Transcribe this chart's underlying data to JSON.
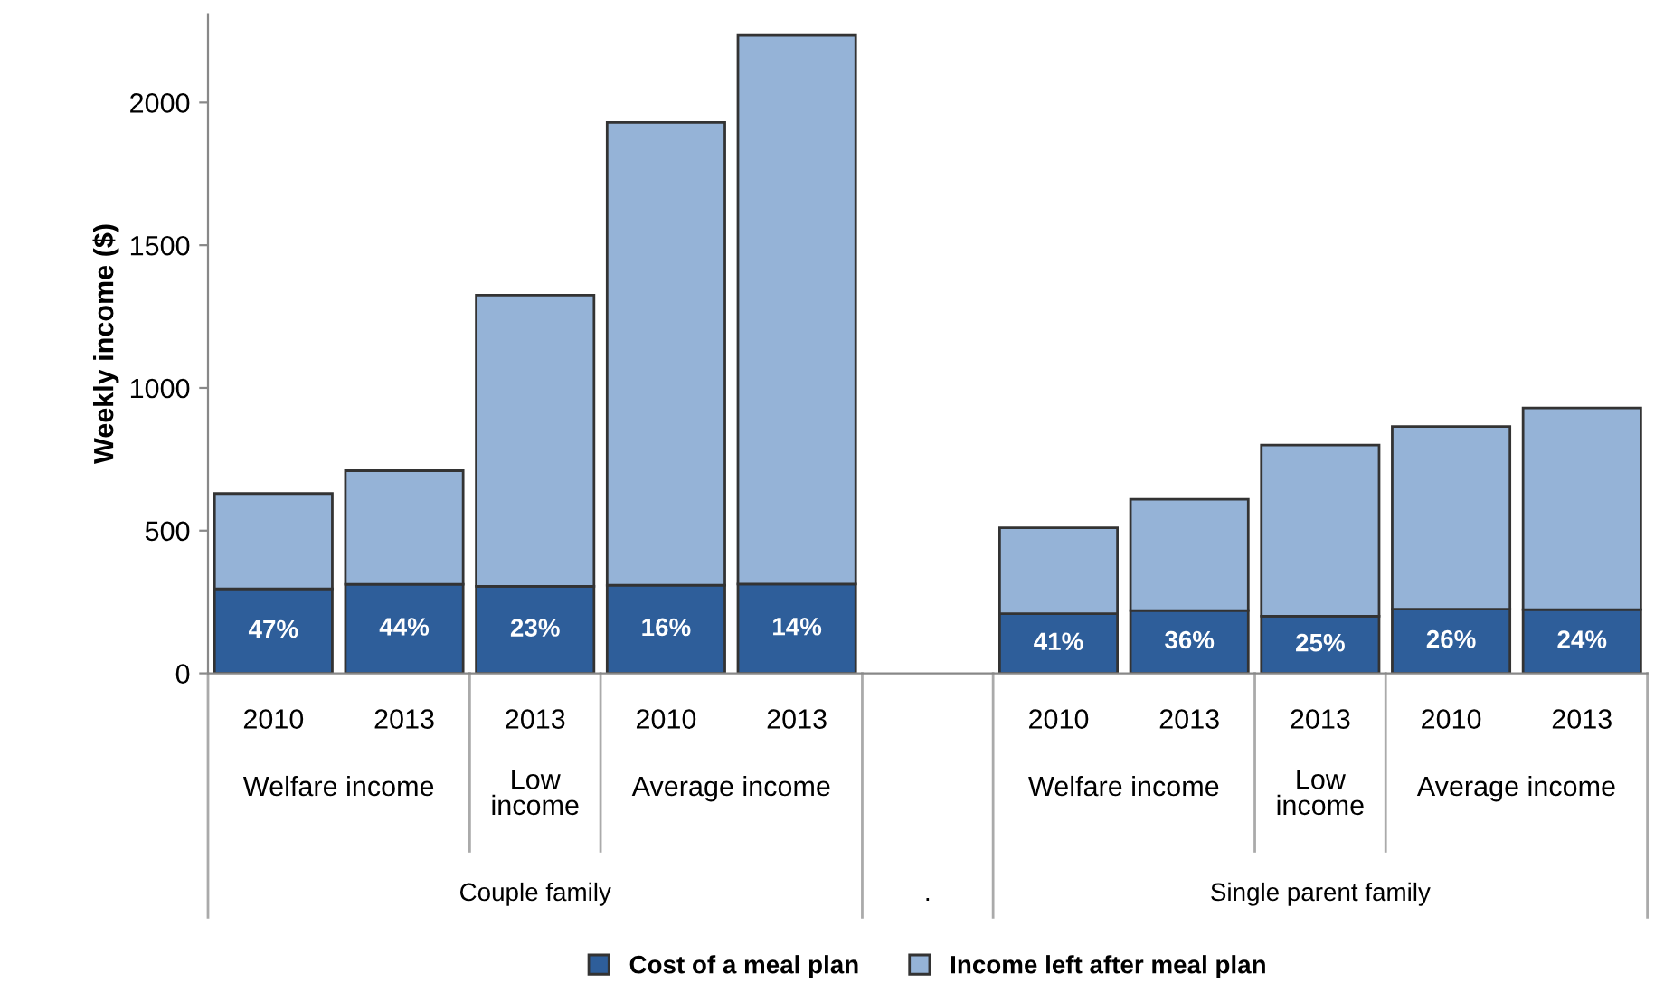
{
  "chart_data": {
    "type": "bar",
    "stacked": true,
    "ylabel": "Weekly income ($)",
    "categories": [
      "2010",
      "2013",
      "2013",
      "2010",
      "2013",
      null,
      "2010",
      "2013",
      "2013",
      "2010",
      "2013"
    ],
    "series": [
      {
        "name": "Cost of a meal plan",
        "color": "#2e5e9a",
        "values": [
          296,
          312,
          305,
          309,
          313,
          null,
          209,
          220,
          200,
          225,
          223
        ]
      },
      {
        "name": "Income left after meal plan",
        "color": "#95b3d7",
        "values": [
          334,
          398,
          1020,
          1621,
          1922,
          null,
          301,
          390,
          600,
          640,
          707
        ]
      }
    ],
    "ylim": [
      0,
      2310
    ],
    "yticks": [
      0,
      500,
      1000,
      1500,
      2000
    ],
    "grid": false,
    "legend": "bottom",
    "annotations": [
      "47%",
      "44%",
      "23%",
      "16%",
      "14%",
      "41%",
      "36%",
      "25%",
      "26%",
      "24%",
      "Welfare income",
      "Low income",
      "Average income",
      "Couple family",
      ".",
      "Welfare income",
      "Low income",
      "Average income",
      "Single parent family"
    ]
  }
}
